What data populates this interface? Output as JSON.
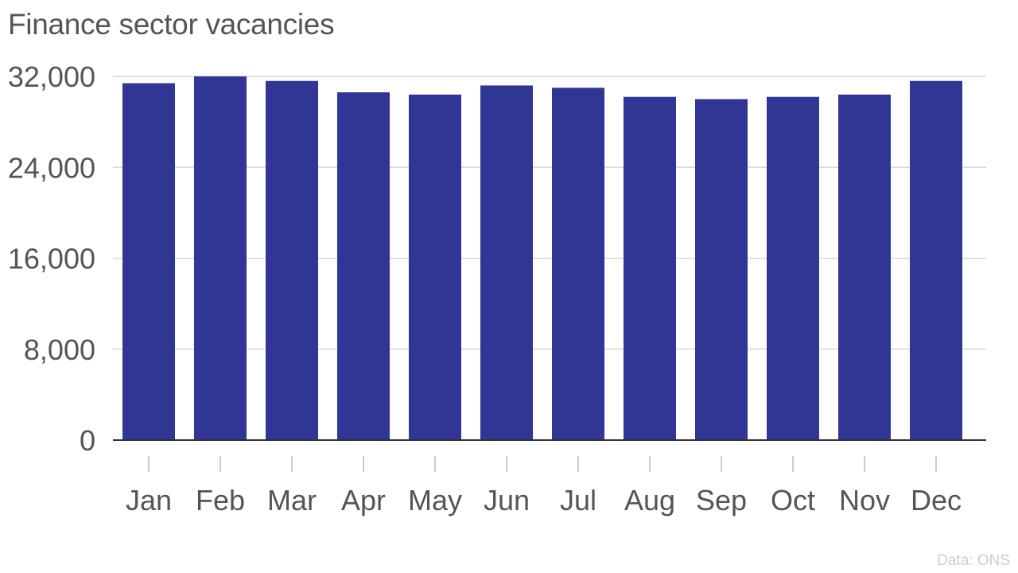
{
  "chart_data": {
    "type": "bar",
    "title": "Finance sector vacancies",
    "xlabel": "",
    "ylabel": "",
    "categories": [
      "Jan",
      "Feb",
      "Mar",
      "Apr",
      "May",
      "Jun",
      "Jul",
      "Aug",
      "Sep",
      "Oct",
      "Nov",
      "Dec"
    ],
    "values": [
      31400,
      32000,
      31600,
      30600,
      30400,
      31200,
      31000,
      30200,
      30000,
      30200,
      30400,
      31600
    ],
    "ylim": [
      0,
      32000
    ],
    "yticks": [
      0,
      8000,
      16000,
      24000,
      32000
    ],
    "ytick_labels": [
      "0",
      "8,000",
      "16,000",
      "24,000",
      "32,000"
    ],
    "grid": true,
    "legend": "none",
    "bar_color": "#313593",
    "grid_color": "#d9d9d9",
    "axis_color": "#333333",
    "tick_label_color": "#555555",
    "source": "Data: ONS"
  }
}
